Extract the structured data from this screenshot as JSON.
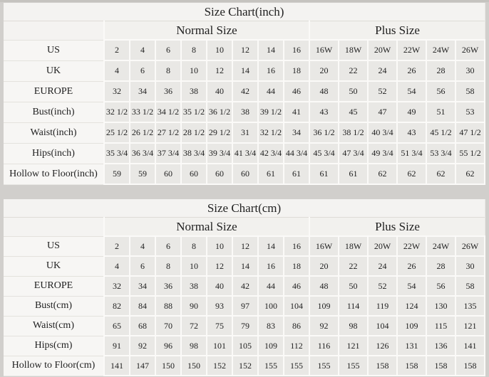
{
  "page": {
    "background_color": "#d1cfcc",
    "data_cell_color": "#e9e8e5",
    "label_cell_color": "#f7f6f4",
    "header_cell_color": "#f2f1ee",
    "grid_line_color": "#fbfaf8",
    "text_color": "#1f1f1f"
  },
  "tables": [
    {
      "title": "Size Chart(inch)",
      "groups": [
        {
          "label": "Normal Size",
          "span": 8
        },
        {
          "label": "Plus Size",
          "span": 6
        }
      ],
      "rows": [
        {
          "label": "US",
          "values": [
            "2",
            "4",
            "6",
            "8",
            "10",
            "12",
            "14",
            "16",
            "16W",
            "18W",
            "20W",
            "22W",
            "24W",
            "26W"
          ]
        },
        {
          "label": "UK",
          "values": [
            "4",
            "6",
            "8",
            "10",
            "12",
            "14",
            "16",
            "18",
            "20",
            "22",
            "24",
            "26",
            "28",
            "30"
          ]
        },
        {
          "label": "EUROPE",
          "values": [
            "32",
            "34",
            "36",
            "38",
            "40",
            "42",
            "44",
            "46",
            "48",
            "50",
            "52",
            "54",
            "56",
            "58"
          ]
        },
        {
          "label": "Bust(inch)",
          "values": [
            "32 1/2",
            "33 1/2",
            "34 1/2",
            "35 1/2",
            "36 1/2",
            "38",
            "39 1/2",
            "41",
            "43",
            "45",
            "47",
            "49",
            "51",
            "53"
          ]
        },
        {
          "label": "Waist(inch)",
          "values": [
            "25 1/2",
            "26 1/2",
            "27 1/2",
            "28 1/2",
            "29 1/2",
            "31",
            "32 1/2",
            "34",
            "36 1/2",
            "38 1/2",
            "40 3/4",
            "43",
            "45 1/2",
            "47 1/2"
          ]
        },
        {
          "label": "Hips(inch)",
          "values": [
            "35 3/4",
            "36 3/4",
            "37 3/4",
            "38 3/4",
            "39 3/4",
            "41 3/4",
            "42 3/4",
            "44 3/4",
            "45 3/4",
            "47 3/4",
            "49 3/4",
            "51 3/4",
            "53 3/4",
            "55 1/2"
          ]
        },
        {
          "label": "Hollow to Floor(inch)",
          "values": [
            "59",
            "59",
            "60",
            "60",
            "60",
            "60",
            "61",
            "61",
            "61",
            "61",
            "62",
            "62",
            "62",
            "62"
          ]
        }
      ]
    },
    {
      "title": "Size Chart(cm)",
      "groups": [
        {
          "label": "Normal Size",
          "span": 8
        },
        {
          "label": "Plus Size",
          "span": 6
        }
      ],
      "rows": [
        {
          "label": "US",
          "values": [
            "2",
            "4",
            "6",
            "8",
            "10",
            "12",
            "14",
            "16",
            "16W",
            "18W",
            "20W",
            "22W",
            "24W",
            "26W"
          ]
        },
        {
          "label": "UK",
          "values": [
            "4",
            "6",
            "8",
            "10",
            "12",
            "14",
            "16",
            "18",
            "20",
            "22",
            "24",
            "26",
            "28",
            "30"
          ]
        },
        {
          "label": "EUROPE",
          "values": [
            "32",
            "34",
            "36",
            "38",
            "40",
            "42",
            "44",
            "46",
            "48",
            "50",
            "52",
            "54",
            "56",
            "58"
          ]
        },
        {
          "label": "Bust(cm)",
          "values": [
            "82",
            "84",
            "88",
            "90",
            "93",
            "97",
            "100",
            "104",
            "109",
            "114",
            "119",
            "124",
            "130",
            "135"
          ]
        },
        {
          "label": "Waist(cm)",
          "values": [
            "65",
            "68",
            "70",
            "72",
            "75",
            "79",
            "83",
            "86",
            "92",
            "98",
            "104",
            "109",
            "115",
            "121"
          ]
        },
        {
          "label": "Hips(cm)",
          "values": [
            "91",
            "92",
            "96",
            "98",
            "101",
            "105",
            "109",
            "112",
            "116",
            "121",
            "126",
            "131",
            "136",
            "141"
          ]
        },
        {
          "label": "Hollow to Floor(cm)",
          "values": [
            "141",
            "147",
            "150",
            "150",
            "152",
            "152",
            "155",
            "155",
            "155",
            "155",
            "158",
            "158",
            "158",
            "158"
          ]
        }
      ]
    }
  ]
}
